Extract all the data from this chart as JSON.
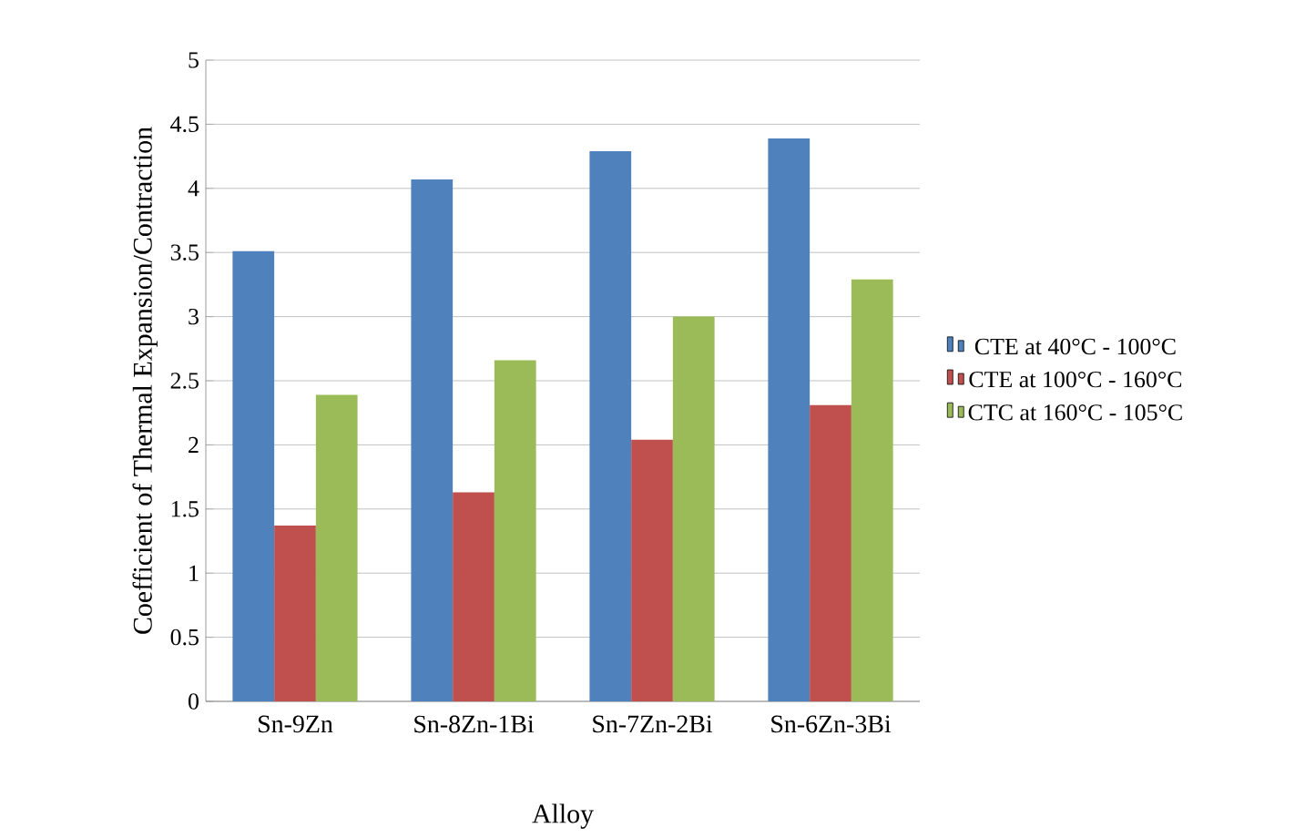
{
  "chart_data": {
    "type": "bar",
    "xlabel": "Alloy",
    "ylabel": "Coefficient of Thermal Expansion/Contraction",
    "categories": [
      "Sn-9Zn",
      "Sn-8Zn-1Bi",
      "Sn-7Zn-2Bi",
      "Sn-6Zn-3Bi"
    ],
    "series": [
      {
        "name": "CTE at 40°C - 100°C",
        "color": "#4f81bd",
        "values": [
          3.51,
          4.07,
          4.29,
          4.39
        ]
      },
      {
        "name": "CTE at 100°C - 160°C",
        "color": "#c0504d",
        "values": [
          1.37,
          1.63,
          2.04,
          2.31
        ]
      },
      {
        "name": "CTC at 160°C - 105°C",
        "color": "#9bbb59",
        "values": [
          2.39,
          2.66,
          3.0,
          3.29
        ]
      }
    ],
    "ylim": [
      0,
      5
    ],
    "yticks": [
      0,
      0.5,
      1,
      1.5,
      2,
      2.5,
      3,
      3.5,
      4,
      4.5,
      5
    ],
    "grid": "y",
    "legend": "right"
  }
}
